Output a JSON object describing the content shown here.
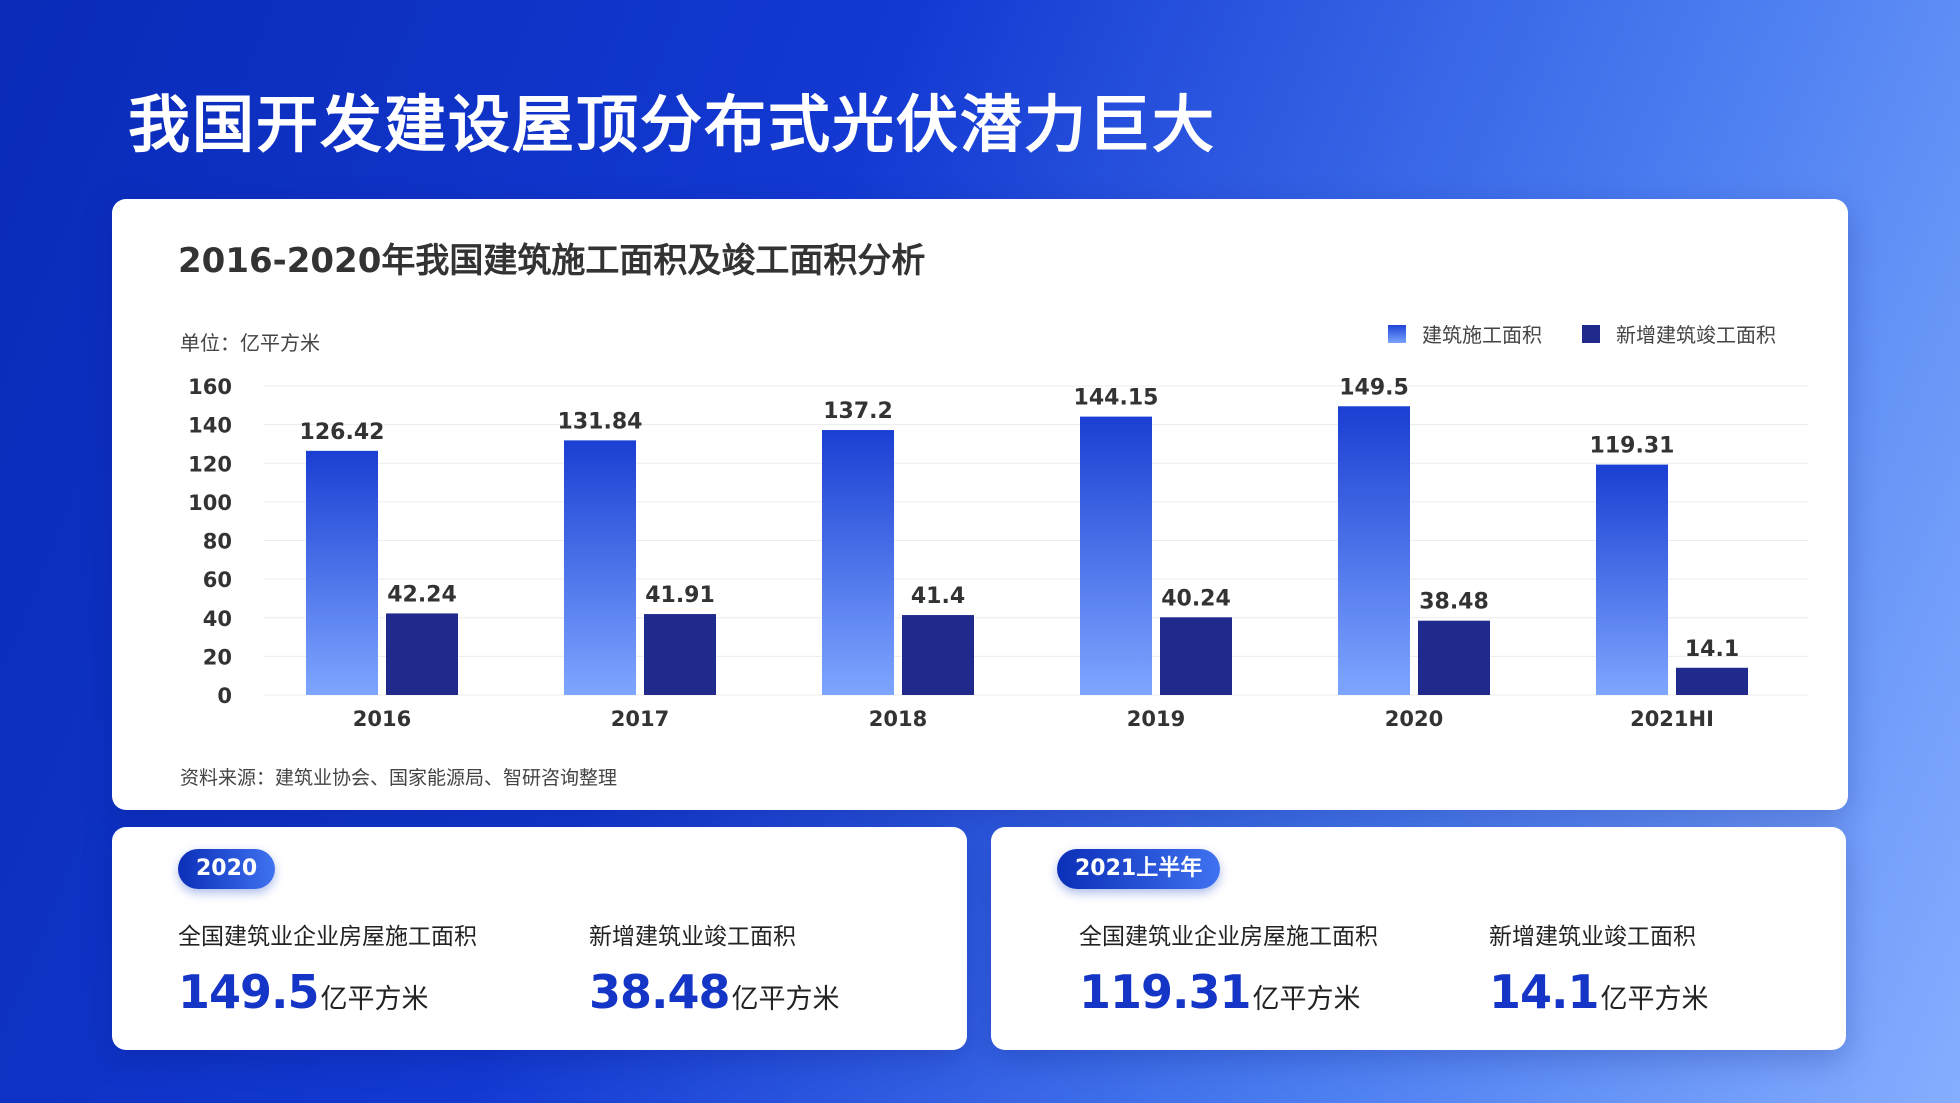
{
  "page": {
    "title": "我国开发建设屋顶分布式光伏潜力巨大"
  },
  "chart_card": {
    "title": "2016-2020年我国建筑施工面积及竣工面积分析",
    "unit": "单位：亿平方米",
    "source": "资料来源：建筑业协会、国家能源局、智研咨询整理"
  },
  "chart_data": {
    "type": "bar",
    "categories": [
      "2016",
      "2017",
      "2018",
      "2019",
      "2020",
      "2021HI"
    ],
    "series": [
      {
        "name": "建筑施工面积",
        "values": [
          126.42,
          131.84,
          137.2,
          144.15,
          149.5,
          119.31
        ],
        "color": "#2a52e0"
      },
      {
        "name": "新增建筑竣工面积",
        "values": [
          42.24,
          41.91,
          41.4,
          40.24,
          38.48,
          14.1
        ],
        "color": "#1f2a8c"
      }
    ],
    "ylim": [
      0,
      160
    ],
    "yticks": [
      0,
      20,
      40,
      60,
      80,
      100,
      120,
      140,
      160
    ],
    "ylabel": "单位：亿平方米",
    "legend_position": "top-right",
    "grid": true
  },
  "stats": {
    "left": {
      "badge": "2020",
      "items": [
        {
          "label": "全国建筑业企业房屋施工面积",
          "value": "149.5",
          "unit": "亿平方米"
        },
        {
          "label": "新增建筑业竣工面积",
          "value": "38.48",
          "unit": "亿平方米"
        }
      ]
    },
    "right": {
      "badge": "2021上半年",
      "items": [
        {
          "label": "全国建筑业企业房屋施工面积",
          "value": "119.31",
          "unit": "亿平方米"
        },
        {
          "label": "新增建筑业竣工面积",
          "value": "14.1",
          "unit": "亿平方米"
        }
      ]
    }
  }
}
